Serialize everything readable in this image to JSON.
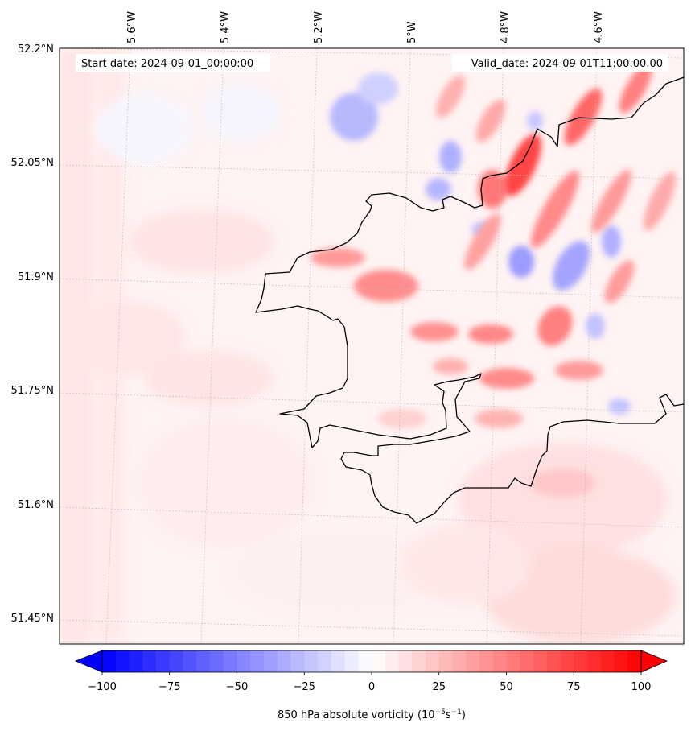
{
  "map": {
    "start_label": "Start date: 2024-09-01_00:00:00",
    "valid_label": "Valid_date: 2024-09-01T11:00:00.00",
    "lon_ticks": [
      "5.6°W",
      "5.4°W",
      "5.2°W",
      "5°W",
      "4.8°W",
      "4.6°W"
    ],
    "lat_ticks": [
      "52.2°N",
      "52.05°N",
      "51.9°N",
      "51.75°N",
      "51.6°N",
      "51.45°N"
    ],
    "colors": {
      "coastline": "#000000",
      "gridline": "#bbbbbb",
      "low": "#0000ff",
      "mid": "#ffffff",
      "high": "#ff0000"
    }
  },
  "colorbar": {
    "ticks": [
      "−100",
      "−75",
      "−50",
      "−25",
      "0",
      "25",
      "50",
      "75",
      "100"
    ],
    "label": "850 hPa absolute vorticity (10",
    "label_exp1": "−5",
    "label_mid": "s",
    "label_exp2": "−1",
    "label_end": ")",
    "min": -100,
    "max": 100,
    "levels": 41
  }
}
